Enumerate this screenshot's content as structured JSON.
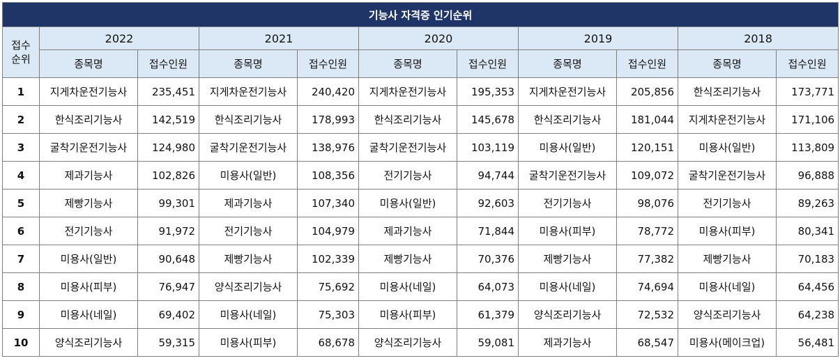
{
  "title": "기능사 자격증 인기순위",
  "rank_header_line1": "접수",
  "rank_header_line2": "순위",
  "col_name": "종목명",
  "col_count": "접수인원",
  "years": [
    "2022",
    "2021",
    "2020",
    "2019",
    "2018"
  ],
  "rows": [
    {
      "rank": "1",
      "cells": [
        [
          "지게차운전기능사",
          "235,451"
        ],
        [
          "지게차운전기능사",
          "240,420"
        ],
        [
          "지게차운전기능사",
          "195,353"
        ],
        [
          "지게차운전기능사",
          "205,856"
        ],
        [
          "한식조리기능사",
          "173,771"
        ]
      ]
    },
    {
      "rank": "2",
      "cells": [
        [
          "한식조리기능사",
          "142,519"
        ],
        [
          "한식조리기능사",
          "178,993"
        ],
        [
          "한식조리기능사",
          "145,678"
        ],
        [
          "한식조리기능사",
          "181,044"
        ],
        [
          "지게차운전기능사",
          "171,106"
        ]
      ]
    },
    {
      "rank": "3",
      "cells": [
        [
          "굴착기운전기능사",
          "124,980"
        ],
        [
          "굴착기운전기능사",
          "138,976"
        ],
        [
          "굴착기운전기능사",
          "103,119"
        ],
        [
          "미용사(일반)",
          "120,151"
        ],
        [
          "미용사(일반)",
          "113,809"
        ]
      ]
    },
    {
      "rank": "4",
      "cells": [
        [
          "제과기능사",
          "102,826"
        ],
        [
          "미용사(일반)",
          "108,356"
        ],
        [
          "전기기능사",
          "94,744"
        ],
        [
          "굴착기운전기능사",
          "109,072"
        ],
        [
          "굴착기운전기능사",
          "96,888"
        ]
      ]
    },
    {
      "rank": "5",
      "cells": [
        [
          "제빵기능사",
          "99,301"
        ],
        [
          "제과기능사",
          "107,340"
        ],
        [
          "미용사(일반)",
          "92,603"
        ],
        [
          "전기기능사",
          "98,076"
        ],
        [
          "전기기능사",
          "89,263"
        ]
      ]
    },
    {
      "rank": "6",
      "cells": [
        [
          "전기기능사",
          "91,972"
        ],
        [
          "전기기능사",
          "104,979"
        ],
        [
          "제과기능사",
          "71,844"
        ],
        [
          "미용사(피부)",
          "78,772"
        ],
        [
          "미용사(피부)",
          "80,341"
        ]
      ]
    },
    {
      "rank": "7",
      "cells": [
        [
          "미용사(일반)",
          "90,648"
        ],
        [
          "제빵기능사",
          "102,339"
        ],
        [
          "제빵기능사",
          "70,376"
        ],
        [
          "제빵기능사",
          "77,382"
        ],
        [
          "제빵기능사",
          "70,183"
        ]
      ]
    },
    {
      "rank": "8",
      "cells": [
        [
          "미용사(피부)",
          "76,947"
        ],
        [
          "양식조리기능사",
          "75,692"
        ],
        [
          "미용사(네일)",
          "64,073"
        ],
        [
          "미용사(네일)",
          "74,694"
        ],
        [
          "미용사(네일)",
          "64,456"
        ]
      ]
    },
    {
      "rank": "9",
      "cells": [
        [
          "미용사(네일)",
          "69,402"
        ],
        [
          "미용사(네일)",
          "75,303"
        ],
        [
          "미용사(피부)",
          "61,379"
        ],
        [
          "양식조리기능사",
          "72,532"
        ],
        [
          "양식조리기능사",
          "64,238"
        ]
      ]
    },
    {
      "rank": "10",
      "cells": [
        [
          "양식조리기능사",
          "59,315"
        ],
        [
          "미용사(피부)",
          "68,678"
        ],
        [
          "양식조리기능사",
          "59,081"
        ],
        [
          "제과기능사",
          "68,547"
        ],
        [
          "미용사(메이크업)",
          "56,481"
        ]
      ]
    }
  ]
}
